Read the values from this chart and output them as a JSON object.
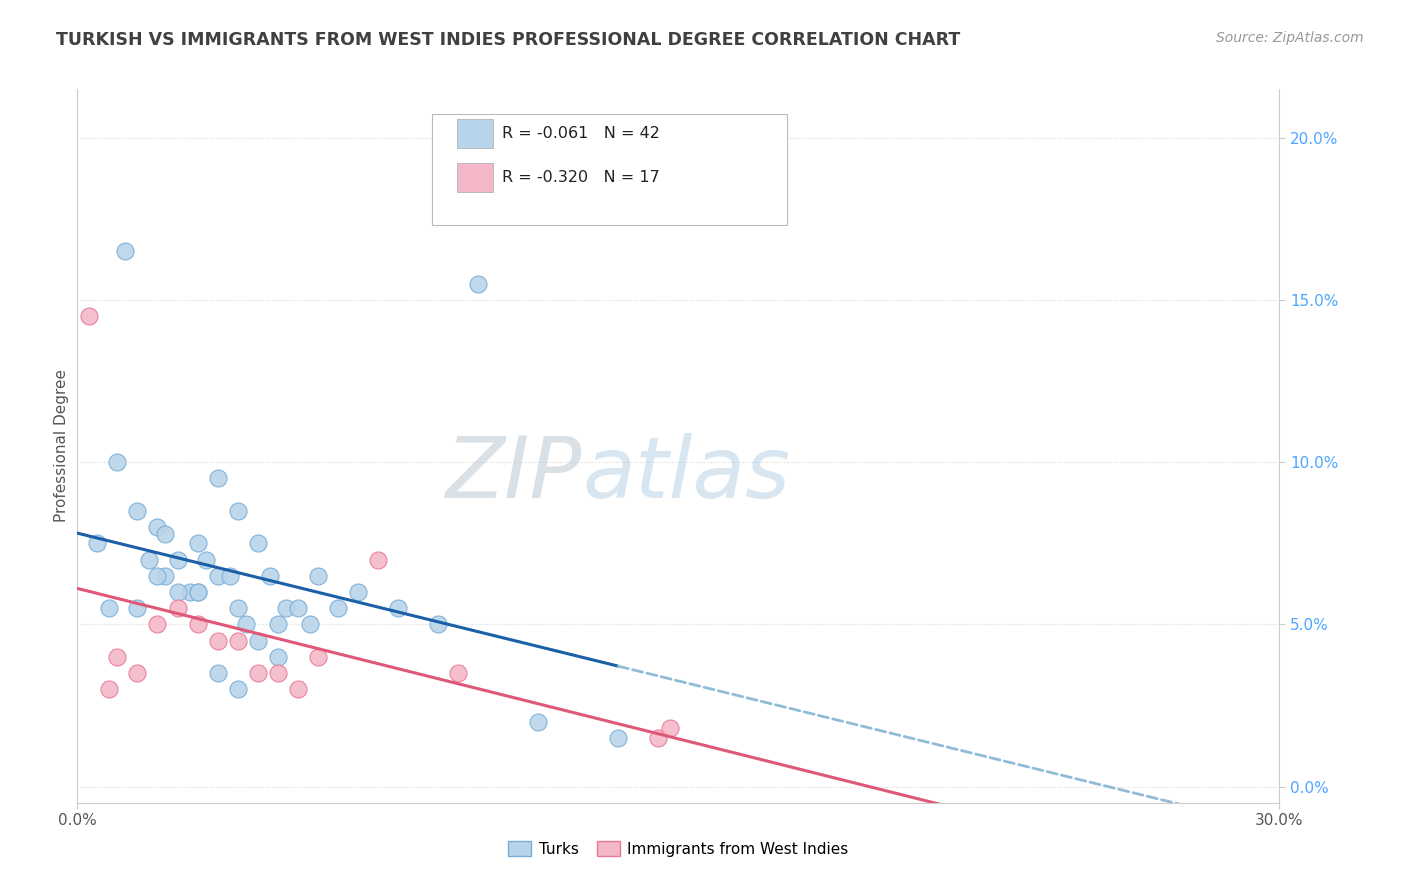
{
  "title": "TURKISH VS IMMIGRANTS FROM WEST INDIES PROFESSIONAL DEGREE CORRELATION CHART",
  "source_text": "Source: ZipAtlas.com",
  "ylabel": "Professional Degree",
  "watermark_zip": "ZIP",
  "watermark_atlas": "atlas",
  "legend_entries": [
    {
      "label": "R = -0.061   N = 42",
      "color": "#b8d4ea"
    },
    {
      "label": "R = -0.320   N = 17",
      "color": "#f5b8c8"
    }
  ],
  "legend_bottom": [
    {
      "label": "Turks",
      "color": "#b8d4ea"
    },
    {
      "label": "Immigrants from West Indies",
      "color": "#f5b8c8"
    }
  ],
  "turks_x": [
    0.5,
    0.8,
    1.0,
    1.2,
    1.5,
    1.8,
    2.0,
    2.2,
    2.2,
    2.5,
    2.8,
    3.0,
    3.0,
    3.2,
    3.5,
    3.5,
    3.8,
    4.0,
    4.0,
    4.2,
    4.5,
    4.5,
    4.8,
    5.0,
    5.2,
    5.5,
    5.8,
    6.0,
    6.5,
    7.0,
    8.0,
    9.0,
    10.0,
    11.5,
    13.5,
    1.5,
    2.0,
    2.5,
    3.0,
    3.5,
    4.0,
    5.0
  ],
  "turks_y": [
    7.5,
    5.5,
    10.0,
    16.5,
    8.5,
    7.0,
    8.0,
    7.8,
    6.5,
    7.0,
    6.0,
    7.5,
    6.0,
    7.0,
    6.5,
    9.5,
    6.5,
    8.5,
    5.5,
    5.0,
    4.5,
    7.5,
    6.5,
    5.0,
    5.5,
    5.5,
    5.0,
    6.5,
    5.5,
    6.0,
    5.5,
    5.0,
    15.5,
    2.0,
    1.5,
    5.5,
    6.5,
    6.0,
    6.0,
    3.5,
    3.0,
    4.0
  ],
  "west_x": [
    0.3,
    0.8,
    1.0,
    1.5,
    2.0,
    2.5,
    3.0,
    3.5,
    4.0,
    4.5,
    5.0,
    5.5,
    6.0,
    7.5,
    9.5,
    14.5,
    14.8
  ],
  "west_y": [
    14.5,
    3.0,
    4.0,
    3.5,
    5.0,
    5.5,
    5.0,
    4.5,
    4.5,
    3.5,
    3.5,
    3.0,
    4.0,
    7.0,
    3.5,
    1.5,
    1.8
  ],
  "turks_color": "#b8d4ea",
  "turks_edge": "#7aadd4",
  "west_color": "#f5b8c8",
  "west_edge": "#e8789a",
  "line_blue_solid": "#1a5fa8",
  "line_blue_dash": "#90bcd8",
  "line_pink": "#e05878",
  "background": "#ffffff",
  "grid_color": "#d8d8d8",
  "title_color": "#404040",
  "right_axis_color": "#4da6ff",
  "ytick_vals": [
    0.0,
    5.0,
    10.0,
    15.0,
    20.0
  ],
  "ytick_labels": [
    "0.0%",
    "5.0%",
    "10.0%",
    "15.0%",
    "20.0%"
  ],
  "xtick_vals": [
    0.0,
    30.0
  ],
  "xtick_labels": [
    "0.0%",
    "30.0%"
  ],
  "xlim": [
    0,
    30
  ],
  "ylim": [
    -0.5,
    21.5
  ],
  "turks_line_end_x": 13.5,
  "turks_line_dash_start": 13.5,
  "turks_line_dash_end": 30.0
}
